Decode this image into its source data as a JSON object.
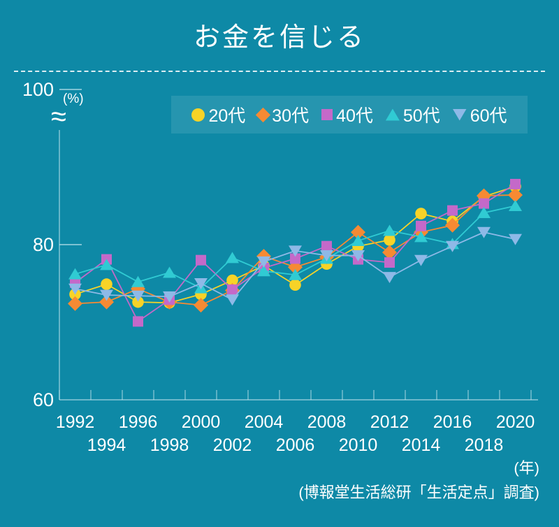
{
  "title": "お金を信じる",
  "source": "(博報堂生活総研「生活定点」調査)",
  "colors": {
    "background": "#0E89A6",
    "legend_background": "#1E97B3",
    "axis_line": "#C8E7EF",
    "text": "#FFFFFF",
    "series_20s": "#F7D327",
    "series_30s": "#F68A33",
    "series_40s": "#C469C9",
    "series_50s": "#30CBD3",
    "series_60s": "#8EB9E7"
  },
  "legend": {
    "items": [
      {
        "label": "20代",
        "marker": "circle",
        "color": "#F7D327"
      },
      {
        "label": "30代",
        "marker": "diamond",
        "color": "#F68A33"
      },
      {
        "label": "40代",
        "marker": "square",
        "color": "#C469C9"
      },
      {
        "label": "50代",
        "marker": "triangle-up",
        "color": "#30CBD3"
      },
      {
        "label": "60代",
        "marker": "triangle-down",
        "color": "#8EB9E7"
      }
    ]
  },
  "axis": {
    "y_unit": "(%)",
    "x_unit": "(年)",
    "break_symbol": "≈",
    "y_ticks": [
      {
        "label": "100",
        "value": 100
      },
      {
        "label": "80",
        "value": 80
      },
      {
        "label": "60",
        "value": 60
      }
    ]
  },
  "chart_data": {
    "type": "line",
    "title": "お金を信じる",
    "ylabel": "(%)",
    "xlabel": "(年)",
    "ylim": [
      60,
      100
    ],
    "y_axis_break_below": 100,
    "grid": false,
    "legend_position": "top",
    "x": [
      1992,
      1994,
      1996,
      1998,
      2000,
      2002,
      2004,
      2006,
      2008,
      2010,
      2012,
      2014,
      2016,
      2018,
      2020
    ],
    "series": [
      {
        "name": "20代",
        "marker": "circle",
        "color": "#F7D327",
        "values": [
          73.6,
          74.9,
          72.6,
          72.5,
          73.6,
          75.4,
          77.3,
          74.8,
          77.5,
          79.8,
          80.6,
          84.0,
          83.0,
          86.2,
          87.5
        ]
      },
      {
        "name": "30代",
        "marker": "diamond",
        "color": "#F68A33",
        "values": [
          72.4,
          72.6,
          74.3,
          72.6,
          72.2,
          74.1,
          78.5,
          77.1,
          78.4,
          81.6,
          79.0,
          81.6,
          82.5,
          86.3,
          86.4
        ]
      },
      {
        "name": "40代",
        "marker": "square",
        "color": "#C469C9",
        "values": [
          75.1,
          78.1,
          70.1,
          72.9,
          78.0,
          74.2,
          77.0,
          78.2,
          79.8,
          78.1,
          77.7,
          82.4,
          84.4,
          85.3,
          87.8
        ]
      },
      {
        "name": "50代",
        "marker": "triangle-up",
        "color": "#30CBD3",
        "values": [
          76.2,
          77.4,
          75.2,
          76.4,
          74.4,
          78.3,
          76.6,
          76.1,
          78.2,
          80.5,
          81.8,
          81.0,
          80.1,
          84.1,
          85.0
        ]
      },
      {
        "name": "60代",
        "marker": "triangle-down",
        "color": "#8EB9E7",
        "values": [
          74.3,
          73.5,
          73.4,
          73.3,
          75.0,
          72.9,
          77.8,
          79.2,
          78.6,
          78.6,
          75.8,
          78.0,
          79.8,
          81.6,
          80.7
        ]
      }
    ]
  }
}
